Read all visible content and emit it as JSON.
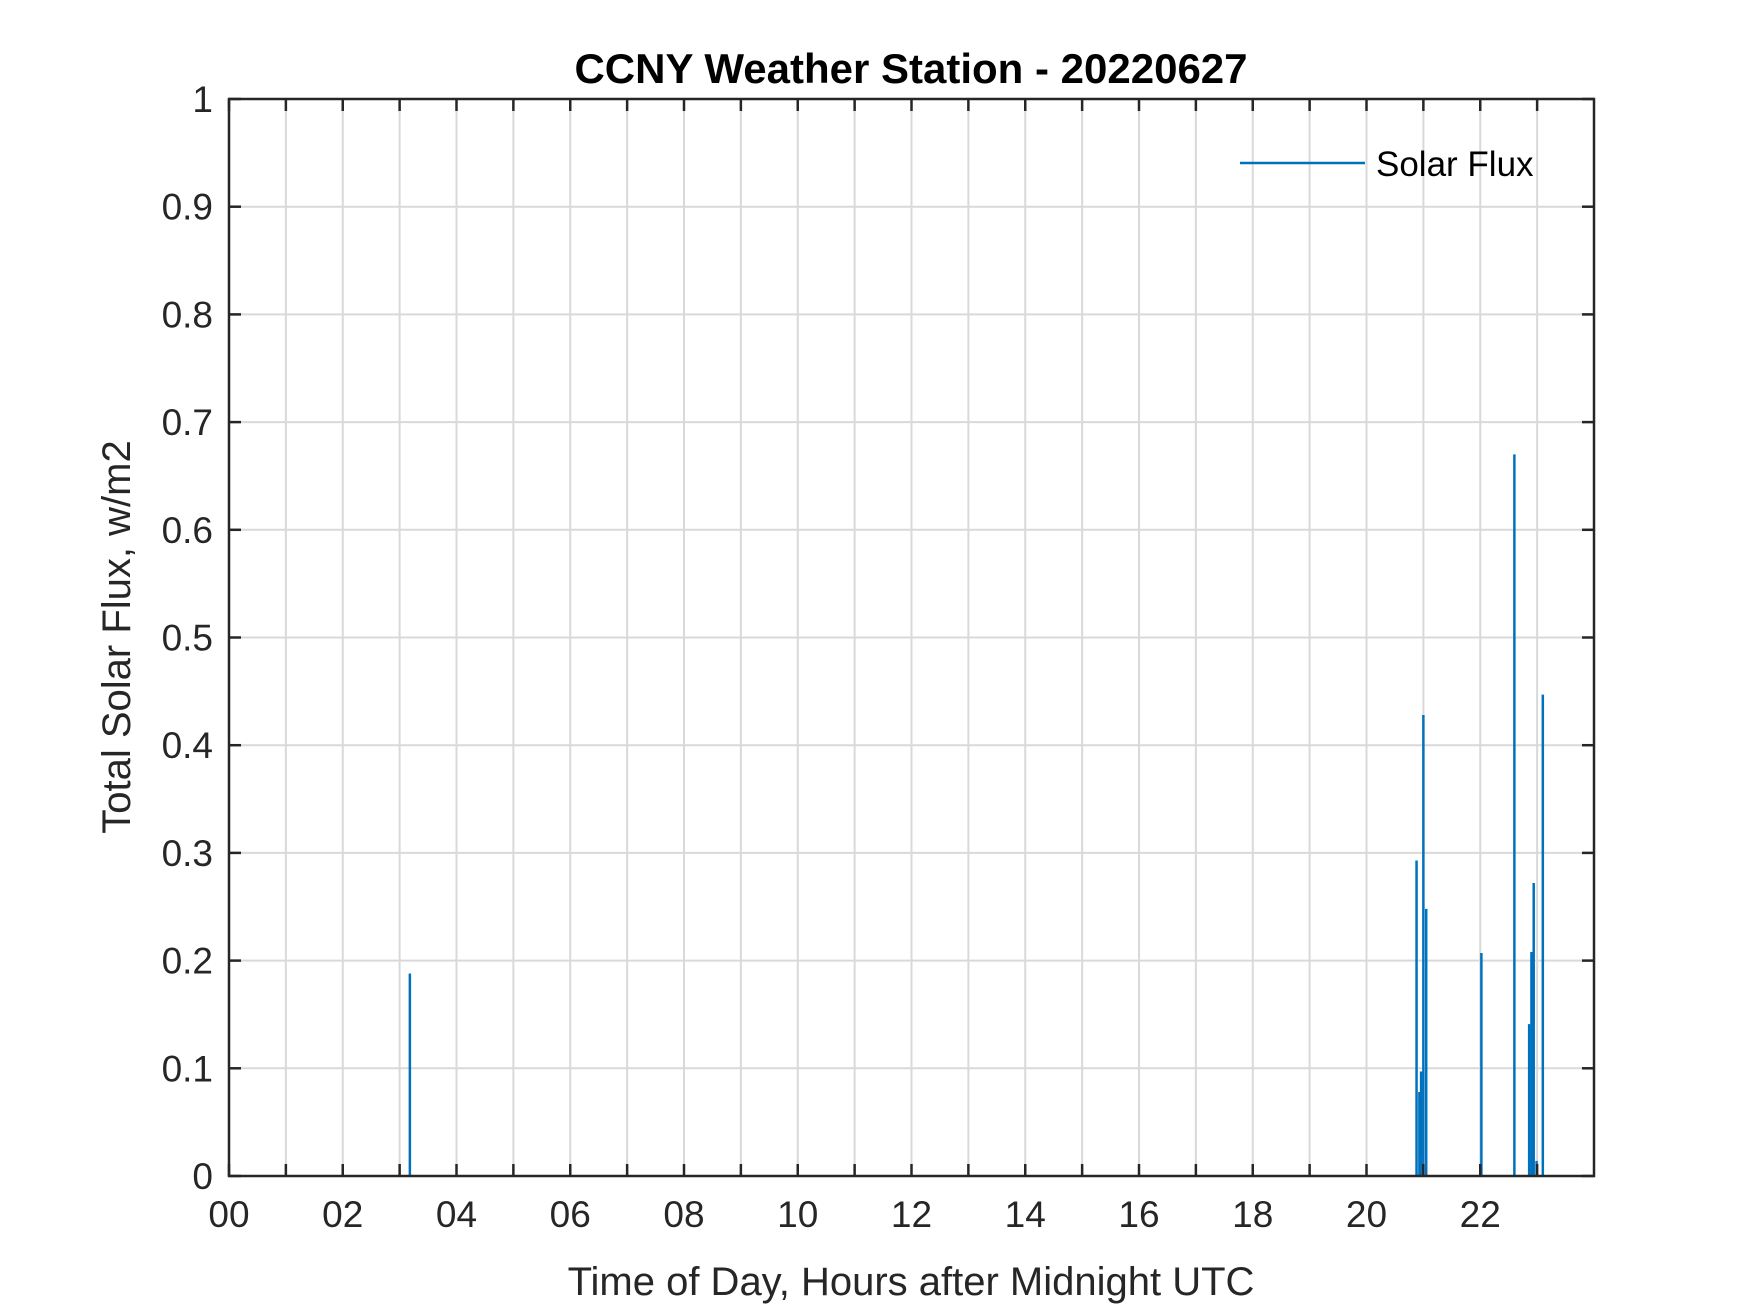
{
  "chart_data": {
    "type": "line",
    "title": "CCNY Weather Station - 20220627",
    "xlabel": "Time of Day, Hours after Midnight UTC",
    "ylabel": "Total Solar Flux, w/m2",
    "xlim": [
      0,
      24
    ],
    "ylim": [
      0,
      1
    ],
    "x_tick_values": [
      0,
      2,
      4,
      6,
      8,
      10,
      12,
      14,
      16,
      18,
      20,
      22
    ],
    "x_tick_labels": [
      "00",
      "02",
      "04",
      "06",
      "08",
      "10",
      "12",
      "14",
      "16",
      "18",
      "20",
      "22"
    ],
    "x_minor_grid": [
      1,
      3,
      5,
      7,
      9,
      11,
      13,
      15,
      17,
      19,
      21,
      23
    ],
    "y_tick_values": [
      0,
      0.1,
      0.2,
      0.3,
      0.4,
      0.5,
      0.6,
      0.7,
      0.8,
      0.9,
      1
    ],
    "y_tick_labels": [
      "0",
      "0.1",
      "0.2",
      "0.3",
      "0.4",
      "0.5",
      "0.6",
      "0.7",
      "0.8",
      "0.9",
      "1"
    ],
    "grid": true,
    "legend": {
      "position": "top-right"
    },
    "series": [
      {
        "name": "Solar Flux",
        "color": "#0072BD",
        "spikes": [
          {
            "x": 3.18,
            "y": 0.188
          },
          {
            "x": 20.88,
            "y": 0.293
          },
          {
            "x": 20.93,
            "y": 0.078
          },
          {
            "x": 20.96,
            "y": 0.097
          },
          {
            "x": 21.0,
            "y": 0.428
          },
          {
            "x": 21.05,
            "y": 0.248
          },
          {
            "x": 22.02,
            "y": 0.207
          },
          {
            "x": 22.6,
            "y": 0.67
          },
          {
            "x": 22.86,
            "y": 0.141
          },
          {
            "x": 22.9,
            "y": 0.208
          },
          {
            "x": 22.94,
            "y": 0.272
          },
          {
            "x": 22.99,
            "y": 0.014
          },
          {
            "x": 23.1,
            "y": 0.447
          }
        ]
      }
    ]
  }
}
